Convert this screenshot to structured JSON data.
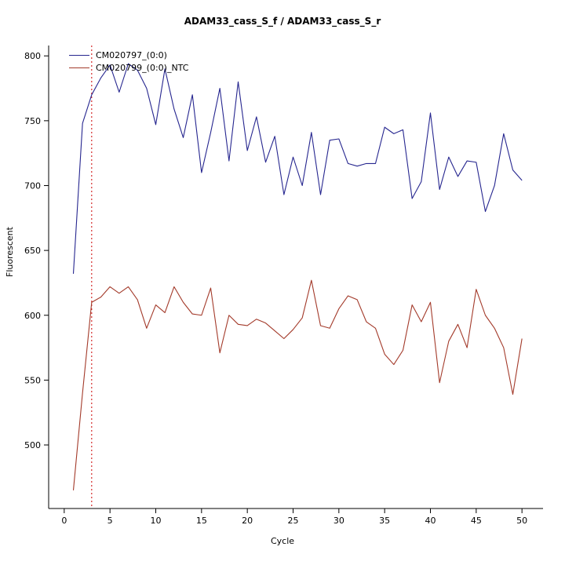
{
  "title": "ADAM33_cass_S_f / ADAM33_cass_S_r",
  "chart_data": {
    "type": "line",
    "title": "ADAM33_cass_S_f / ADAM33_cass_S_r",
    "xlabel": "Cycle",
    "ylabel": "Fluorescent",
    "xlim": [
      -1.7,
      52.3
    ],
    "ylim": [
      451,
      808
    ],
    "xticks": [
      0,
      5,
      10,
      15,
      20,
      25,
      30,
      35,
      40,
      45,
      50
    ],
    "yticks": [
      500,
      550,
      600,
      650,
      700,
      750,
      800
    ],
    "grid": false,
    "legend_position": "top-left",
    "threshold_line": {
      "x": 3,
      "color": "#cc0000",
      "style": "dotted"
    },
    "x": [
      1,
      2,
      3,
      4,
      5,
      6,
      7,
      8,
      9,
      10,
      11,
      12,
      13,
      14,
      15,
      16,
      17,
      18,
      19,
      20,
      21,
      22,
      23,
      24,
      25,
      26,
      27,
      28,
      29,
      30,
      31,
      32,
      33,
      34,
      35,
      36,
      37,
      38,
      39,
      40,
      41,
      42,
      43,
      44,
      45,
      46,
      47,
      48,
      49,
      50
    ],
    "series": [
      {
        "name": "CM020797_(0:0)",
        "color": "#26268f",
        "values": [
          632,
          748,
          770,
          783,
          793,
          772,
          794,
          789,
          775,
          747,
          790,
          759,
          737,
          770,
          710,
          741,
          775,
          719,
          780,
          727,
          753,
          718,
          738,
          693,
          722,
          700,
          741,
          693,
          735,
          736,
          717,
          715,
          717,
          717,
          745,
          740,
          743,
          690,
          703,
          756,
          697,
          722,
          707,
          719,
          718,
          680,
          700,
          740,
          712,
          704
        ]
      },
      {
        "name": "CM020799_(0:0)_NTC",
        "color": "#a33a2a",
        "values": [
          465,
          540,
          610,
          614,
          622,
          617,
          622,
          612,
          590,
          608,
          602,
          622,
          610,
          601,
          600,
          621,
          571,
          600,
          593,
          592,
          597,
          594,
          588,
          582,
          589,
          598,
          627,
          592,
          590,
          605,
          615,
          612,
          595,
          590,
          570,
          562,
          573,
          608,
          595,
          610,
          548,
          580,
          593,
          575,
          620,
          600,
          590,
          575,
          539,
          582
        ]
      }
    ]
  }
}
